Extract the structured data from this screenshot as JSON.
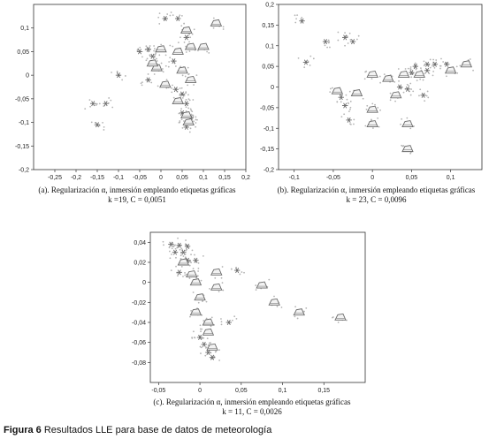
{
  "figure": {
    "label": "Figura 6",
    "text": "Resultados LLE para base de datos de meteorología"
  },
  "colors": {
    "axis": "#333333",
    "points": "#b4b4b4",
    "glyph": "#6a6a6a"
  },
  "chart_data": [
    {
      "type": "scatter",
      "id": "a",
      "caption_line1": "(a). Regularización α, inmersión empleando etiquetas gráficas",
      "caption_line2": "k =19, C = 0,0051",
      "xlim": [
        -0.3,
        0.2
      ],
      "ylim": [
        -0.2,
        0.15
      ],
      "xticks": [
        -0.25,
        -0.2,
        -0.15,
        -0.1,
        -0.05,
        0,
        0.05,
        0.1,
        0.15,
        0.2
      ],
      "xtick_labels": [
        "-0,25",
        "-0,2",
        "-0,15",
        "-0,1",
        "-0,05",
        "0",
        "0,05",
        "0,1",
        "0,15",
        "0,2"
      ],
      "yticks": [
        0.1,
        0.05,
        0,
        -0.05,
        -0.1,
        -0.15,
        -0.2
      ],
      "ytick_labels": [
        "0,1",
        "0,05",
        "0",
        "-0,05",
        "-0,1",
        "-0,15",
        "-0,2"
      ],
      "glyphs": [
        {
          "kind": "snow",
          "x": -0.16,
          "y": -0.06
        },
        {
          "kind": "snow",
          "x": -0.13,
          "y": -0.06
        },
        {
          "kind": "snow",
          "x": -0.15,
          "y": -0.105
        },
        {
          "kind": "snow",
          "x": -0.1,
          "y": 0.0
        },
        {
          "kind": "snow",
          "x": -0.05,
          "y": 0.05
        },
        {
          "kind": "snow",
          "x": -0.03,
          "y": 0.055
        },
        {
          "kind": "snow",
          "x": -0.02,
          "y": 0.04
        },
        {
          "kind": "snow",
          "x": 0.01,
          "y": 0.12
        },
        {
          "kind": "snow",
          "x": 0.04,
          "y": 0.12
        },
        {
          "kind": "snow",
          "x": 0.06,
          "y": 0.08
        },
        {
          "kind": "snow",
          "x": 0.03,
          "y": 0.03
        },
        {
          "kind": "snow",
          "x": -0.03,
          "y": -0.01
        },
        {
          "kind": "snow",
          "x": 0.035,
          "y": -0.03
        },
        {
          "kind": "snow",
          "x": 0.05,
          "y": -0.04
        },
        {
          "kind": "snow",
          "x": 0.06,
          "y": -0.06
        },
        {
          "kind": "snow",
          "x": 0.05,
          "y": -0.08
        },
        {
          "kind": "snow",
          "x": 0.07,
          "y": -0.09
        },
        {
          "kind": "snow",
          "x": 0.06,
          "y": -0.11
        },
        {
          "kind": "cloud",
          "x": 0.06,
          "y": 0.095
        },
        {
          "kind": "cloud",
          "x": 0.0,
          "y": 0.055
        },
        {
          "kind": "cloud",
          "x": 0.04,
          "y": 0.05
        },
        {
          "kind": "cloud",
          "x": 0.07,
          "y": 0.06
        },
        {
          "kind": "cloud",
          "x": 0.1,
          "y": 0.06
        },
        {
          "kind": "cloud",
          "x": 0.13,
          "y": 0.11
        },
        {
          "kind": "cloud",
          "x": -0.01,
          "y": 0.015
        },
        {
          "kind": "cloud",
          "x": 0.05,
          "y": 0.01
        },
        {
          "kind": "cloud",
          "x": 0.07,
          "y": -0.01
        },
        {
          "kind": "cloud",
          "x": -0.02,
          "y": 0.025
        },
        {
          "kind": "cloud",
          "x": 0.01,
          "y": -0.02
        },
        {
          "kind": "cloud",
          "x": 0.04,
          "y": -0.055
        },
        {
          "kind": "cloud",
          "x": 0.06,
          "y": -0.085
        },
        {
          "kind": "cloud",
          "x": 0.065,
          "y": -0.1
        }
      ]
    },
    {
      "type": "scatter",
      "id": "b",
      "caption_line1": "(b). Regularización α, inmersión empleando etiquetas gráficas",
      "caption_line2": "k = 23, C = 0,0096",
      "xlim": [
        -0.12,
        0.14
      ],
      "ylim": [
        -0.2,
        0.2
      ],
      "xticks": [
        -0.1,
        -0.05,
        0,
        0.05,
        0.1
      ],
      "xtick_labels": [
        "-0,1",
        "-0,05",
        "0",
        "0,05",
        "0,1"
      ],
      "yticks": [
        0.2,
        0.15,
        0.1,
        0.05,
        0,
        -0.05,
        -0.1,
        -0.15,
        -0.2
      ],
      "ytick_labels": [
        "0,2",
        "0,15",
        "0,1",
        "0,05",
        "0",
        "-0,05",
        "-0,1",
        "-0,15",
        "-0,2"
      ],
      "glyphs": [
        {
          "kind": "snow",
          "x": -0.09,
          "y": 0.16
        },
        {
          "kind": "snow",
          "x": -0.06,
          "y": 0.11
        },
        {
          "kind": "snow",
          "x": -0.035,
          "y": 0.12
        },
        {
          "kind": "snow",
          "x": -0.025,
          "y": 0.11
        },
        {
          "kind": "snow",
          "x": -0.085,
          "y": 0.06
        },
        {
          "kind": "snow",
          "x": -0.04,
          "y": -0.025
        },
        {
          "kind": "snow",
          "x": -0.035,
          "y": -0.045
        },
        {
          "kind": "snow",
          "x": -0.03,
          "y": -0.08
        },
        {
          "kind": "snow",
          "x": 0.055,
          "y": 0.05
        },
        {
          "kind": "snow",
          "x": 0.07,
          "y": 0.055
        },
        {
          "kind": "snow",
          "x": 0.08,
          "y": 0.055
        },
        {
          "kind": "snow",
          "x": 0.095,
          "y": 0.055
        },
        {
          "kind": "snow",
          "x": 0.05,
          "y": 0.035
        },
        {
          "kind": "snow",
          "x": 0.07,
          "y": 0.04
        },
        {
          "kind": "snow",
          "x": 0.065,
          "y": -0.02
        },
        {
          "kind": "snow",
          "x": 0.045,
          "y": -0.005
        },
        {
          "kind": "snow",
          "x": 0.035,
          "y": 0.0
        },
        {
          "kind": "cloud",
          "x": -0.045,
          "y": -0.01
        },
        {
          "kind": "cloud",
          "x": -0.02,
          "y": -0.015
        },
        {
          "kind": "cloud",
          "x": 0.0,
          "y": 0.03
        },
        {
          "kind": "cloud",
          "x": 0.02,
          "y": 0.02
        },
        {
          "kind": "cloud",
          "x": 0.04,
          "y": 0.03
        },
        {
          "kind": "cloud",
          "x": 0.12,
          "y": 0.055
        },
        {
          "kind": "cloud",
          "x": 0.03,
          "y": -0.02
        },
        {
          "kind": "cloud",
          "x": 0.0,
          "y": -0.055
        },
        {
          "kind": "cloud",
          "x": 0.0,
          "y": -0.09
        },
        {
          "kind": "cloud",
          "x": 0.045,
          "y": -0.09
        },
        {
          "kind": "cloud",
          "x": 0.045,
          "y": -0.15
        },
        {
          "kind": "cloud",
          "x": 0.06,
          "y": 0.03
        },
        {
          "kind": "cloud",
          "x": 0.1,
          "y": 0.04
        }
      ]
    },
    {
      "type": "scatter",
      "id": "c",
      "caption_line1": "(c). Regularización α, inmersión empleando etiquetas gráficas",
      "caption_line2": "k = 11, C = 0,0026",
      "xlim": [
        -0.06,
        0.2
      ],
      "ylim": [
        -0.1,
        0.05
      ],
      "xticks": [
        -0.05,
        0,
        0.05,
        0.1,
        0.15
      ],
      "xtick_labels": [
        "-0,05",
        "0",
        "0,05",
        "0,1",
        "0,15"
      ],
      "yticks": [
        0.04,
        0.02,
        0,
        -0.02,
        -0.04,
        -0.06,
        -0.08
      ],
      "ytick_labels": [
        "0,04",
        "0,02",
        "0",
        "-0,02",
        "-0,04",
        "-0,06",
        "-0,08"
      ],
      "glyphs": [
        {
          "kind": "snow",
          "x": -0.035,
          "y": 0.038
        },
        {
          "kind": "snow",
          "x": -0.025,
          "y": 0.037
        },
        {
          "kind": "snow",
          "x": -0.015,
          "y": 0.036
        },
        {
          "kind": "snow",
          "x": -0.03,
          "y": 0.03
        },
        {
          "kind": "snow",
          "x": -0.02,
          "y": 0.03
        },
        {
          "kind": "snow",
          "x": -0.015,
          "y": 0.022
        },
        {
          "kind": "snow",
          "x": -0.005,
          "y": 0.022
        },
        {
          "kind": "snow",
          "x": 0.045,
          "y": 0.012
        },
        {
          "kind": "snow",
          "x": -0.025,
          "y": 0.01
        },
        {
          "kind": "snow",
          "x": 0.0,
          "y": -0.055
        },
        {
          "kind": "snow",
          "x": 0.005,
          "y": -0.062
        },
        {
          "kind": "snow",
          "x": 0.01,
          "y": -0.07
        },
        {
          "kind": "snow",
          "x": 0.015,
          "y": -0.075
        },
        {
          "kind": "snow",
          "x": 0.035,
          "y": -0.04
        },
        {
          "kind": "cloud",
          "x": -0.02,
          "y": 0.02
        },
        {
          "kind": "cloud",
          "x": -0.01,
          "y": 0.008
        },
        {
          "kind": "cloud",
          "x": 0.02,
          "y": 0.01
        },
        {
          "kind": "cloud",
          "x": -0.005,
          "y": 0.0
        },
        {
          "kind": "cloud",
          "x": 0.02,
          "y": -0.005
        },
        {
          "kind": "cloud",
          "x": 0.075,
          "y": -0.003
        },
        {
          "kind": "cloud",
          "x": 0.0,
          "y": -0.015
        },
        {
          "kind": "cloud",
          "x": -0.005,
          "y": -0.03
        },
        {
          "kind": "cloud",
          "x": 0.01,
          "y": -0.04
        },
        {
          "kind": "cloud",
          "x": 0.01,
          "y": -0.05
        },
        {
          "kind": "cloud",
          "x": 0.12,
          "y": -0.03
        },
        {
          "kind": "cloud",
          "x": 0.17,
          "y": -0.035
        },
        {
          "kind": "cloud",
          "x": 0.09,
          "y": -0.02
        },
        {
          "kind": "cloud",
          "x": 0.015,
          "y": -0.065
        }
      ]
    }
  ]
}
